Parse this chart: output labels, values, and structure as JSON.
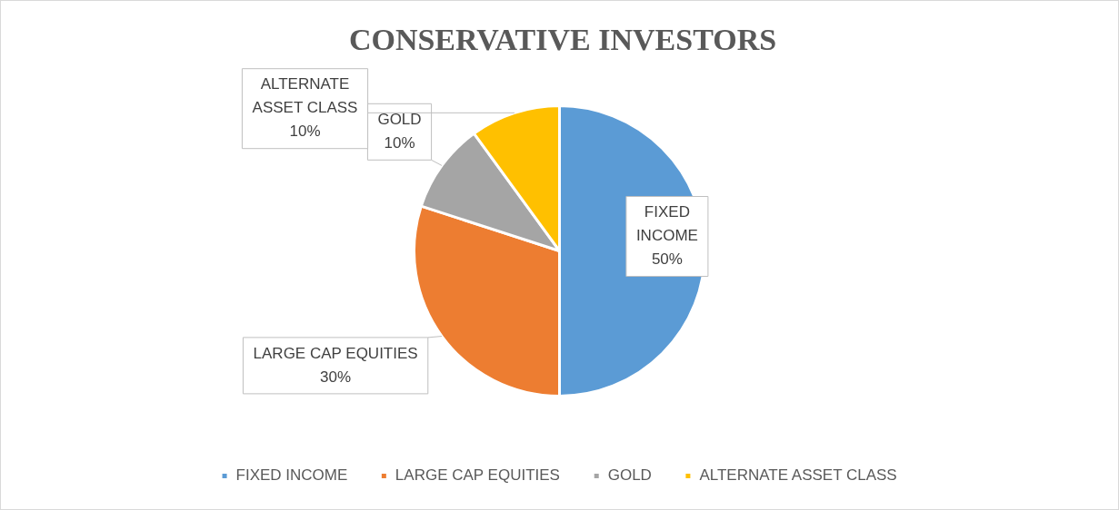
{
  "chart_data": {
    "type": "pie",
    "title": "CONSERVATIVE INVESTORS",
    "categories": [
      "FIXED INCOME",
      "LARGE CAP EQUITIES",
      "GOLD",
      "ALTERNATE ASSET CLASS"
    ],
    "values": [
      50,
      30,
      10,
      10
    ],
    "value_labels": [
      "50%",
      "30%",
      "10%",
      "10%"
    ],
    "colors": [
      "#5b9bd5",
      "#ed7d31",
      "#a5a5a5",
      "#ffc000"
    ],
    "legend": "bottom"
  }
}
